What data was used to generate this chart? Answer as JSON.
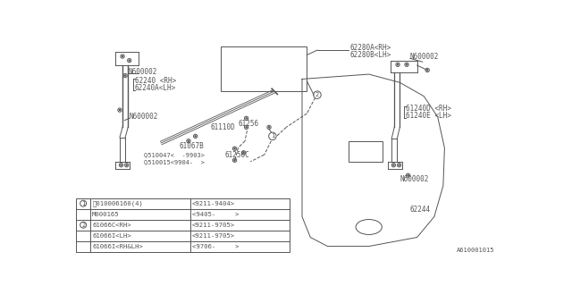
{
  "background_color": "#ffffff",
  "gray": "#555555",
  "font_size": 5.5,
  "lw": 0.7,
  "table_rows": [
    [
      "1",
      "Ⓑ010006160(4)",
      "<9211-9404>"
    ],
    [
      "",
      "M000165",
      "<9405-     >"
    ],
    [
      "2",
      "61066C<RH>",
      "<9211-9705>"
    ],
    [
      "",
      "61066I<LH>",
      "<9211-9705>"
    ],
    [
      "",
      "61066I<RH&LH>",
      "<9706-     >"
    ]
  ],
  "ref": "A610001015"
}
